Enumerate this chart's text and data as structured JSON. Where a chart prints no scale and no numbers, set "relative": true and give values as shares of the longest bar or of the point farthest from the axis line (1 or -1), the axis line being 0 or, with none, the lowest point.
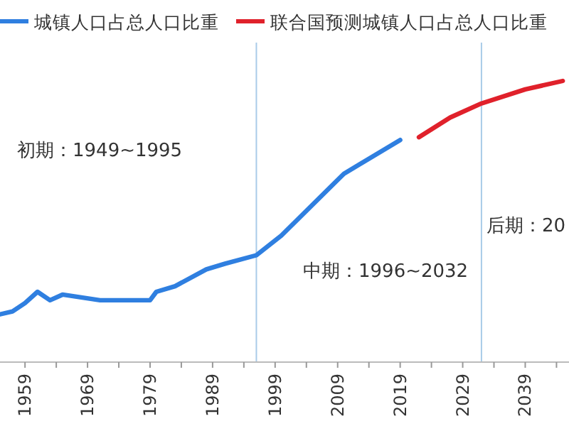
{
  "chart_data": {
    "type": "line",
    "relative": true,
    "legend": "top left",
    "tick_labels": "x",
    "series": [
      {
        "name": "城镇人口占总人口比重",
        "color": "#2f7fe0",
        "x": [
          1955,
          1957,
          1959,
          1961,
          1963,
          1965,
          1971,
          1979,
          1980,
          1983,
          1988,
          1991,
          1996,
          2000,
          2010,
          2019
        ],
        "values": [
          0.17,
          0.18,
          0.21,
          0.25,
          0.22,
          0.24,
          0.22,
          0.22,
          0.25,
          0.27,
          0.33,
          0.35,
          0.38,
          0.45,
          0.67,
          0.79
        ]
      },
      {
        "name": "联合国预测城镇人口占总人口比重",
        "color": "#e0212b",
        "x": [
          2022,
          2027,
          2032,
          2039,
          2045
        ],
        "values": [
          0.8,
          0.87,
          0.92,
          0.97,
          1
        ]
      }
    ],
    "xlim": [
      1955,
      2046
    ],
    "xticks": [
      1959,
      {
        "value": 1964,
        "label": null
      },
      1969,
      {
        "value": 1974,
        "label": null
      },
      1979,
      {
        "value": 1984,
        "label": null
      },
      1989,
      {
        "value": 1994,
        "label": null
      },
      1999,
      {
        "value": 2004,
        "label": null
      },
      2009,
      {
        "value": 2014,
        "label": null
      },
      2019,
      {
        "value": 2024,
        "label": null
      },
      2029,
      {
        "value": 2034,
        "label": null
      },
      2039,
      {
        "value": 2044,
        "label": null
      }
    ],
    "ref_lines": [
      {
        "axis": "x",
        "value": 1996,
        "color": "#a9cbe8"
      },
      {
        "axis": "x",
        "value": 2032,
        "color": "#a9cbe8"
      }
    ],
    "annotations": [
      "初期：1949~1995",
      "中期：1996~2032",
      "后期：20"
    ]
  }
}
